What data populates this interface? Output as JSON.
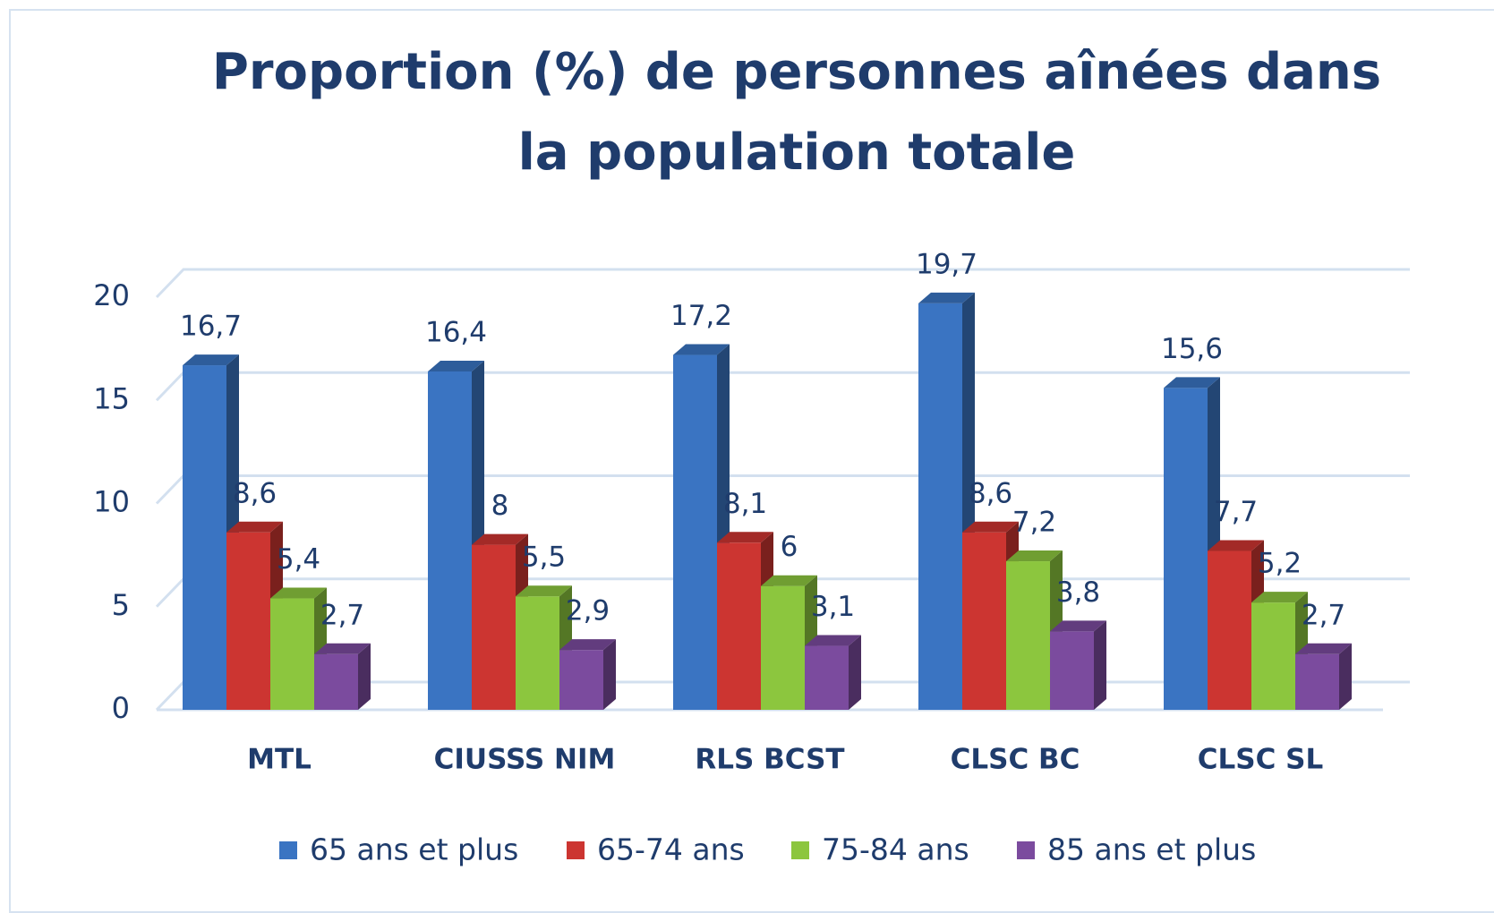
{
  "chart_data": {
    "type": "bar3d",
    "title": "Proportion (%) de personnes aînées dans la population totale",
    "categories": [
      "MTL",
      "CIUSSS NIM",
      "RLS BCST",
      "CLSC BC",
      "CLSC SL"
    ],
    "series": [
      {
        "name": "65 ans et plus",
        "color": "#3a74c2",
        "values": [
          16.7,
          16.4,
          17.2,
          19.7,
          15.6
        ],
        "value_labels": [
          "16,7",
          "16,4",
          "17,2",
          "19,7",
          "15,6"
        ]
      },
      {
        "name": "65-74 ans",
        "color": "#cc3531",
        "values": [
          8.6,
          8,
          8.1,
          8.6,
          7.7
        ],
        "value_labels": [
          "8,6",
          "8",
          "8,1",
          "8,6",
          "7,7"
        ]
      },
      {
        "name": "75-84 ans",
        "color": "#8cc63e",
        "values": [
          5.4,
          5.5,
          6,
          7.2,
          5.2
        ],
        "value_labels": [
          "5,4",
          "5,5",
          "6",
          "7,2",
          "5,2"
        ]
      },
      {
        "name": "85 ans et plus",
        "color": "#7b4b9e",
        "values": [
          2.7,
          2.9,
          3.1,
          3.8,
          2.7
        ],
        "value_labels": [
          "2,7",
          "2,9",
          "3,1",
          "3,8",
          "2,7"
        ]
      }
    ],
    "ylim": [
      0,
      20
    ],
    "yticks": [
      0,
      5,
      10,
      15,
      20
    ],
    "grid": true,
    "legend": "bottom"
  }
}
